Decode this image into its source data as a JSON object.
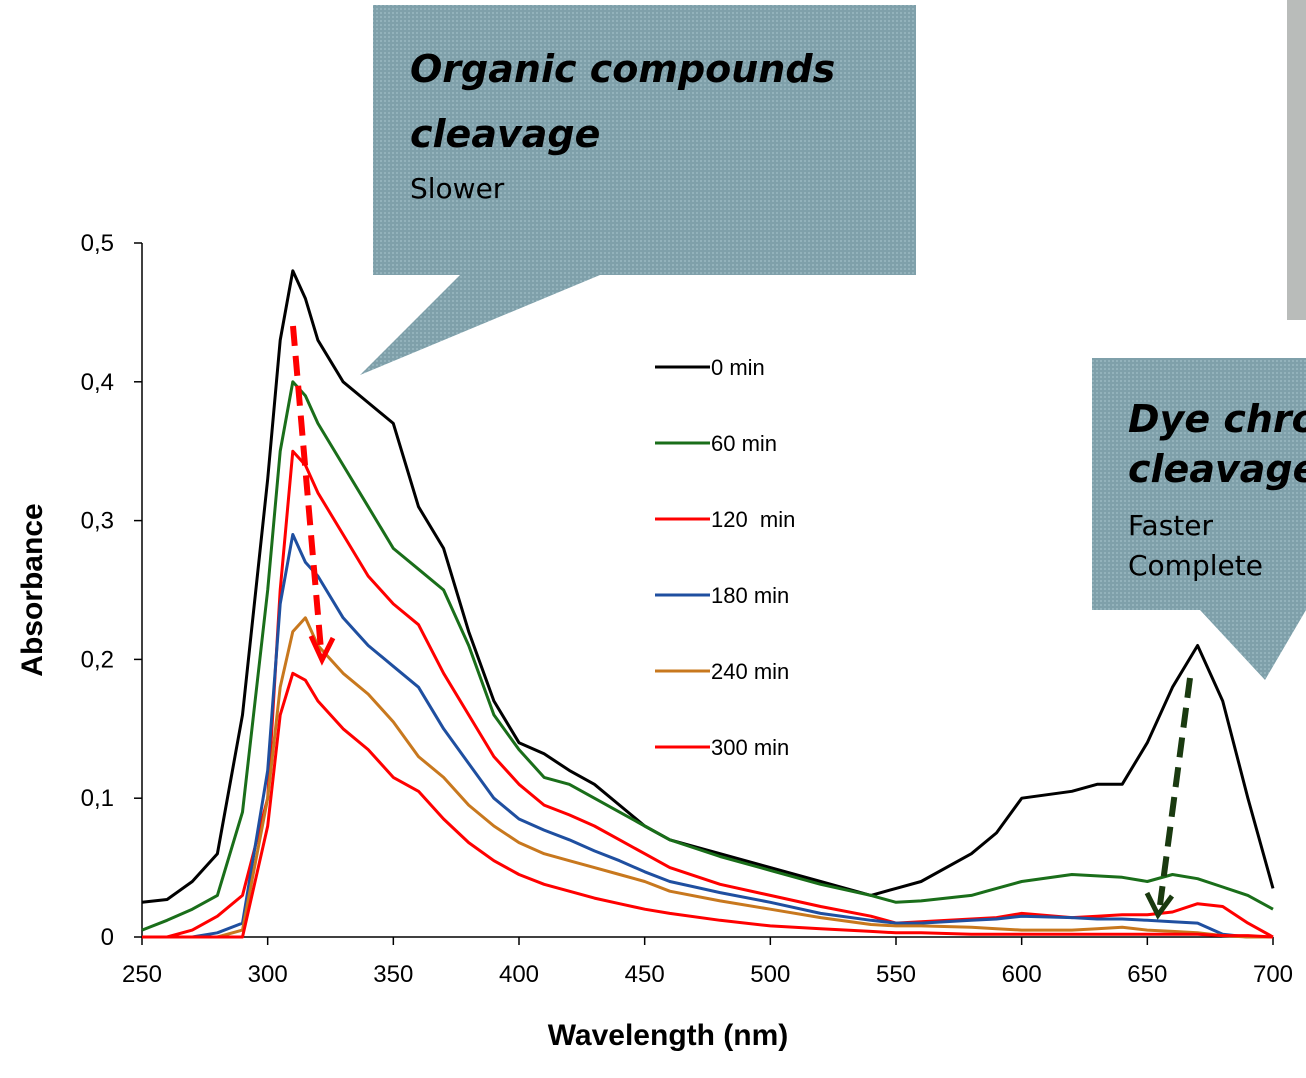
{
  "chart_data": {
    "type": "line",
    "x_label": "Wavelength (nm)",
    "y_label": "Absorbance",
    "x": [
      250,
      260,
      270,
      280,
      290,
      300,
      305,
      310,
      315,
      320,
      330,
      340,
      350,
      360,
      370,
      380,
      390,
      400,
      410,
      420,
      430,
      440,
      450,
      460,
      480,
      500,
      520,
      540,
      550,
      560,
      580,
      590,
      600,
      620,
      630,
      640,
      650,
      660,
      670,
      680,
      690,
      700
    ],
    "series": [
      {
        "name": "0 min",
        "color": "#000000",
        "values": [
          0.025,
          0.027,
          0.04,
          0.06,
          0.16,
          0.33,
          0.43,
          0.48,
          0.46,
          0.43,
          0.4,
          0.385,
          0.37,
          0.31,
          0.28,
          0.22,
          0.17,
          0.14,
          0.132,
          0.12,
          0.11,
          0.095,
          0.08,
          0.07,
          0.06,
          0.05,
          0.04,
          0.03,
          0.035,
          0.04,
          0.06,
          0.075,
          0.1,
          0.105,
          0.11,
          0.11,
          0.14,
          0.18,
          0.21,
          0.17,
          0.1,
          0.035
        ]
      },
      {
        "name": "60 min",
        "color": "#1a6e1a",
        "values": [
          0.005,
          0.012,
          0.02,
          0.03,
          0.09,
          0.25,
          0.35,
          0.4,
          0.39,
          0.37,
          0.34,
          0.31,
          0.28,
          0.265,
          0.25,
          0.21,
          0.16,
          0.135,
          0.115,
          0.11,
          0.1,
          0.09,
          0.08,
          0.07,
          0.058,
          0.048,
          0.038,
          0.03,
          0.025,
          0.026,
          0.03,
          0.035,
          0.04,
          0.045,
          0.044,
          0.043,
          0.04,
          0.045,
          0.042,
          0.036,
          0.03,
          0.02
        ]
      },
      {
        "name": "120  min",
        "color": "#ff0000",
        "values": [
          0,
          0,
          0.005,
          0.015,
          0.03,
          0.1,
          0.25,
          0.35,
          0.34,
          0.32,
          0.29,
          0.26,
          0.24,
          0.225,
          0.19,
          0.16,
          0.13,
          0.11,
          0.095,
          0.088,
          0.08,
          0.07,
          0.06,
          0.05,
          0.038,
          0.03,
          0.022,
          0.015,
          0.01,
          0.011,
          0.013,
          0.014,
          0.017,
          0.014,
          0.015,
          0.016,
          0.016,
          0.018,
          0.024,
          0.022,
          0.01,
          0
        ]
      },
      {
        "name": "180 min",
        "color": "#1f4fa0",
        "values": [
          0,
          0,
          0,
          0.003,
          0.01,
          0.12,
          0.24,
          0.29,
          0.27,
          0.26,
          0.23,
          0.21,
          0.195,
          0.18,
          0.15,
          0.125,
          0.1,
          0.085,
          0.077,
          0.07,
          0.062,
          0.055,
          0.047,
          0.04,
          0.032,
          0.025,
          0.017,
          0.012,
          0.01,
          0.01,
          0.012,
          0.013,
          0.015,
          0.014,
          0.013,
          0.013,
          0.012,
          0.011,
          0.01,
          0.002,
          0,
          0
        ]
      },
      {
        "name": "240 min",
        "color": "#c8781e",
        "values": [
          0,
          0,
          0,
          0,
          0.005,
          0.1,
          0.18,
          0.22,
          0.23,
          0.21,
          0.19,
          0.175,
          0.155,
          0.13,
          0.115,
          0.095,
          0.08,
          0.068,
          0.06,
          0.055,
          0.05,
          0.045,
          0.04,
          0.033,
          0.026,
          0.02,
          0.014,
          0.009,
          0.008,
          0.008,
          0.007,
          0.006,
          0.005,
          0.005,
          0.006,
          0.007,
          0.005,
          0.004,
          0.003,
          0.001,
          0,
          0
        ]
      },
      {
        "name": "300 min",
        "color": "#ff0000",
        "values": [
          0,
          0,
          0,
          0,
          0,
          0.08,
          0.16,
          0.19,
          0.185,
          0.17,
          0.15,
          0.135,
          0.115,
          0.105,
          0.085,
          0.068,
          0.055,
          0.045,
          0.038,
          0.033,
          0.028,
          0.024,
          0.02,
          0.017,
          0.012,
          0.008,
          0.006,
          0.004,
          0.003,
          0.003,
          0.002,
          0.002,
          0.002,
          0.002,
          0.002,
          0.002,
          0.002,
          0.002,
          0.002,
          0.001,
          0.001,
          0
        ]
      }
    ],
    "xlim": [
      250,
      700
    ],
    "xticks": [
      250,
      300,
      350,
      400,
      450,
      500,
      550,
      600,
      650,
      700
    ],
    "ylim": [
      0,
      0.5
    ],
    "yticks": [
      0,
      {
        "value": 0.1,
        "label": "0,1"
      },
      {
        "value": 0.2,
        "label": "0,2"
      },
      {
        "value": 0.3,
        "label": "0,3"
      },
      {
        "value": 0.4,
        "label": "0,4"
      },
      {
        "value": 0.5,
        "label": "0,5"
      }
    ],
    "annotations": [
      {
        "title": [
          "Organic compounds",
          "cleavage"
        ],
        "text": [
          "Slower"
        ]
      },
      {
        "title": [
          "Dye chro",
          "cleavage"
        ],
        "text": [
          "Faster",
          "Complete"
        ]
      }
    ]
  }
}
